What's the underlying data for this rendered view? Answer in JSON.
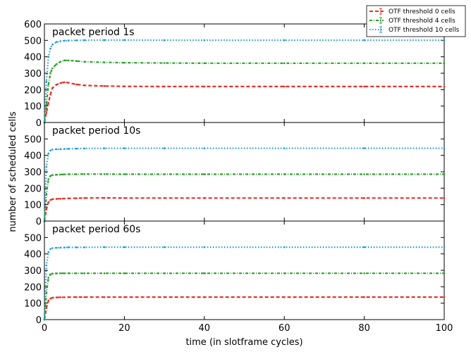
{
  "chart_data": {
    "type": "line",
    "xlabel": "time (in slotframe cycles)",
    "ylabel": "number of scheduled cells",
    "xlim": [
      0,
      100
    ],
    "x_ticks": [
      "0",
      "20",
      "40",
      "60",
      "80",
      "100"
    ],
    "grid": false,
    "legend": {
      "placement": "top-right",
      "entries": [
        "OTF threshold 0 cells",
        "OTF threshold 4 cells",
        "OTF threshold 10 cells"
      ]
    },
    "colors": [
      "#e8302a",
      "#2ca02c",
      "#1f98d8"
    ],
    "panels": [
      {
        "title": "packet period 1s",
        "ylim": [
          0,
          600
        ],
        "y_ticks": [
          "0",
          "100",
          "200",
          "300",
          "400",
          "500",
          "600"
        ],
        "series": [
          {
            "name": "OTF threshold 0 cells",
            "x": [
              0,
              0.5,
              1,
              1.5,
              2,
              3,
              4,
              5,
              6,
              8,
              10,
              15,
              20,
              30,
              40,
              60,
              80,
              100
            ],
            "y": [
              0,
              60,
              120,
              170,
              210,
              230,
              240,
              245,
              242,
              232,
              226,
              222,
              220,
              219,
              219,
              219,
              219,
              219
            ]
          },
          {
            "name": "OTF threshold 4 cells",
            "x": [
              0,
              0.5,
              1,
              1.5,
              2,
              3,
              4,
              5,
              6,
              8,
              10,
              15,
              20,
              30,
              40,
              60,
              80,
              100
            ],
            "y": [
              0,
              110,
              230,
              300,
              330,
              355,
              370,
              378,
              378,
              374,
              370,
              366,
              364,
              362,
              361,
              361,
              361,
              361
            ]
          },
          {
            "name": "OTF threshold 10 cells",
            "x": [
              0,
              0.5,
              1,
              1.5,
              2,
              3,
              4,
              5,
              6,
              8,
              10,
              15,
              20,
              30,
              40,
              60,
              80,
              100
            ],
            "y": [
              0,
              250,
              400,
              450,
              475,
              490,
              495,
              498,
              499,
              500,
              501,
              502,
              502,
              501,
              501,
              501,
              501,
              501
            ]
          }
        ]
      },
      {
        "title": "packet period 10s",
        "ylim": [
          0,
          600
        ],
        "y_ticks": [
          "0",
          "100",
          "200",
          "300",
          "400",
          "500"
        ],
        "series": [
          {
            "name": "OTF threshold 0 cells",
            "x": [
              0,
              0.5,
              1,
              1.5,
              2,
              3,
              4,
              5,
              6,
              8,
              10,
              15,
              20,
              30,
              40,
              60,
              80,
              100
            ],
            "y": [
              0,
              70,
              115,
              128,
              133,
              135,
              136,
              137,
              138,
              139,
              140,
              141,
              140,
              140,
              140,
              140,
              140,
              140
            ]
          },
          {
            "name": "OTF threshold 4 cells",
            "x": [
              0,
              0.5,
              1,
              1.5,
              2,
              3,
              4,
              5,
              6,
              8,
              10,
              15,
              20,
              30,
              40,
              60,
              80,
              100
            ],
            "y": [
              0,
              160,
              255,
              275,
              280,
              282,
              283,
              284,
              285,
              285,
              286,
              286,
              285,
              285,
              285,
              285,
              285,
              285
            ]
          },
          {
            "name": "OTF threshold 10 cells",
            "x": [
              0,
              0.5,
              1,
              1.5,
              2,
              3,
              4,
              5,
              6,
              8,
              10,
              15,
              20,
              30,
              40,
              60,
              80,
              100
            ],
            "y": [
              0,
              330,
              410,
              430,
              435,
              437,
              438,
              439,
              440,
              441,
              442,
              443,
              443,
              443,
              443,
              443,
              443,
              443
            ]
          }
        ]
      },
      {
        "title": "packet period 60s",
        "ylim": [
          0,
          600
        ],
        "y_ticks": [
          "0",
          "100",
          "200",
          "300",
          "400",
          "500"
        ],
        "series": [
          {
            "name": "OTF threshold 0 cells",
            "x": [
              0,
              0.5,
              1,
              1.5,
              2,
              3,
              4,
              5,
              6,
              8,
              10,
              15,
              20,
              30,
              40,
              60,
              80,
              100
            ],
            "y": [
              0,
              70,
              115,
              128,
              133,
              135,
              136,
              136,
              137,
              137,
              137,
              137,
              137,
              137,
              137,
              137,
              137,
              137
            ]
          },
          {
            "name": "OTF threshold 4 cells",
            "x": [
              0,
              0.5,
              1,
              1.5,
              2,
              3,
              4,
              5,
              6,
              8,
              10,
              15,
              20,
              30,
              40,
              60,
              80,
              100
            ],
            "y": [
              0,
              160,
              255,
              275,
              280,
              281,
              282,
              282,
              282,
              282,
              282,
              282,
              282,
              282,
              282,
              282,
              282,
              282
            ]
          },
          {
            "name": "OTF threshold 10 cells",
            "x": [
              0,
              0.5,
              1,
              1.5,
              2,
              3,
              4,
              5,
              6,
              8,
              10,
              15,
              20,
              30,
              40,
              60,
              80,
              100
            ],
            "y": [
              0,
              330,
              410,
              430,
              435,
              437,
              438,
              439,
              440,
              440,
              440,
              441,
              441,
              441,
              441,
              441,
              441,
              441
            ]
          }
        ]
      }
    ]
  }
}
